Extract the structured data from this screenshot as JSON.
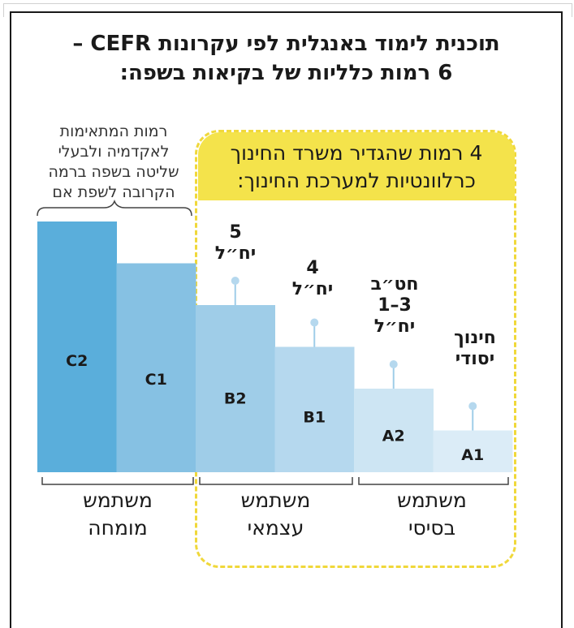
{
  "title": {
    "line1": "תוכנית לימוד באנגלית לפי עקרונות CEFR –",
    "line2": "6 רמות כלליות של בקיאות בשפה:"
  },
  "academic_note": [
    "רמות המתאימות",
    "לאקדמיה ולבעלי",
    "שליטה בשפה ברמה",
    "הקרובה לשפת אם"
  ],
  "ministry_box": {
    "line1": "4 רמות שהגדיר משרד החינוך",
    "line2": "כרלוונטיות למערכת החינוך:"
  },
  "groups": [
    {
      "line1": "משתמש",
      "line2": "מומחה"
    },
    {
      "line1": "משתמש",
      "line2": "עצמאי"
    },
    {
      "line1": "משתמש",
      "line2": "בסיסי"
    }
  ],
  "pin_labels": {
    "B2": [
      "5",
      "יח״ל"
    ],
    "B1": [
      "4",
      "יח״ל"
    ],
    "A2": [
      "חט״ב",
      "3–1",
      "יח״ל"
    ],
    "A1": [
      "חינוך",
      "יסודי"
    ]
  },
  "colors": {
    "C2": "#5aaedb",
    "C1": "#86c1e3",
    "B2": "#9fcde8",
    "B1": "#b5d8ee",
    "A2": "#cde5f3",
    "A1": "#dbecf7",
    "yellow": "#f4e34b",
    "dashed": "#f0d83a"
  },
  "chart_data": {
    "type": "bar",
    "categories": [
      "C2",
      "C1",
      "B2",
      "B1",
      "A2",
      "A1"
    ],
    "values": [
      6,
      5,
      4,
      3,
      2,
      1
    ],
    "title": "",
    "xlabel": "",
    "ylabel": "",
    "ylim": [
      0,
      6
    ]
  }
}
